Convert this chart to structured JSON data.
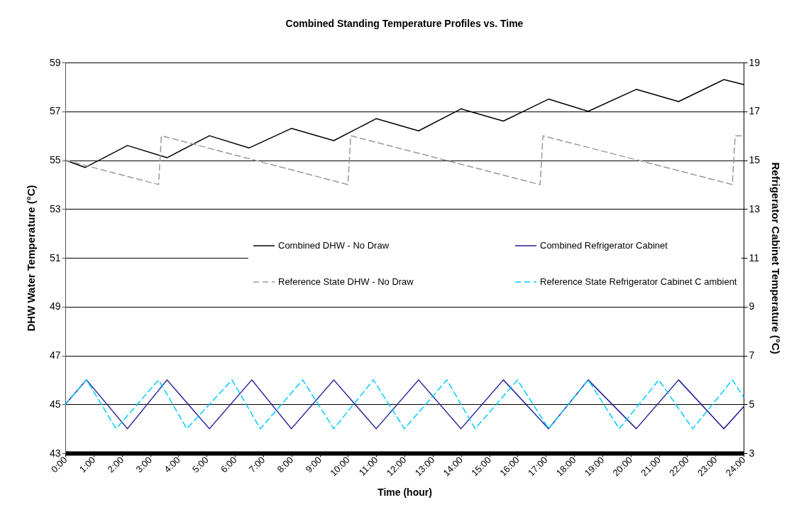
{
  "chart_data": {
    "type": "line",
    "title": "Combined Standing Temperature Profiles vs. Time",
    "xlabel": "Time (hour)",
    "ylabel": "DHW Water Temperature (°C)",
    "y2label": "Refrigerator Cabinet Temperature (°C)",
    "xlim": [
      0,
      24
    ],
    "xticks": [
      {
        "value": 0,
        "label": "0:00"
      },
      {
        "value": 1,
        "label": "1:00"
      },
      {
        "value": 2,
        "label": "2:00"
      },
      {
        "value": 3,
        "label": "3:00"
      },
      {
        "value": 4,
        "label": "4:00"
      },
      {
        "value": 5,
        "label": "5:00"
      },
      {
        "value": 6,
        "label": "6:00"
      },
      {
        "value": 7,
        "label": "7:00"
      },
      {
        "value": 8,
        "label": "8:00"
      },
      {
        "value": 9,
        "label": "9:00"
      },
      {
        "value": 10,
        "label": "10:00"
      },
      {
        "value": 11,
        "label": "11:00"
      },
      {
        "value": 12,
        "label": "12:00"
      },
      {
        "value": 13,
        "label": "13:00"
      },
      {
        "value": 14,
        "label": "14:00"
      },
      {
        "value": 15,
        "label": "15:00"
      },
      {
        "value": 16,
        "label": "16:00"
      },
      {
        "value": 17,
        "label": "17:00"
      },
      {
        "value": 18,
        "label": "18:00"
      },
      {
        "value": 19,
        "label": "19:00"
      },
      {
        "value": 20,
        "label": "20:00"
      },
      {
        "value": 21,
        "label": "21:00"
      },
      {
        "value": 22,
        "label": "22:00"
      },
      {
        "value": 23,
        "label": "23:00"
      },
      {
        "value": 24,
        "label": "24:00"
      }
    ],
    "ylim": [
      43,
      59
    ],
    "yticks": [
      43,
      45,
      47,
      49,
      51,
      53,
      55,
      57,
      59
    ],
    "y2lim": [
      3,
      19
    ],
    "y2ticks": [
      3,
      5,
      7,
      9,
      11,
      13,
      15,
      17,
      19
    ],
    "grid": "y",
    "legend": "center",
    "marker": "none",
    "series": [
      {
        "name": "Combined DHW - No Draw",
        "color": "#000000",
        "line_style": "solid",
        "x": [
          0,
          0.7,
          2.2,
          3.6,
          5.1,
          6.5,
          8.0,
          9.5,
          11.0,
          12.5,
          14.0,
          15.5,
          17.1,
          18.5,
          20.2,
          21.7,
          23.3,
          24
        ],
        "values": [
          55,
          54.7,
          55.6,
          55.1,
          56.0,
          55.5,
          56.3,
          55.8,
          56.7,
          56.2,
          57.1,
          56.6,
          57.5,
          57.0,
          57.9,
          57.4,
          58.3,
          58.1
        ]
      },
      {
        "name": "Reference State DHW - No Draw",
        "color": "#999999",
        "line_style": "dashed",
        "x": [
          0,
          3.3,
          3.4,
          10.0,
          10.1,
          16.8,
          16.9,
          23.6,
          23.7,
          24
        ],
        "values": [
          55,
          54,
          56,
          54,
          56,
          54,
          56,
          54,
          56,
          56
        ]
      },
      {
        "name": "Combined Refrigerator Cabinet",
        "color": "#1f1f99",
        "line_style": "solid",
        "axis": "y2",
        "x": [
          0,
          0.75,
          2.2,
          3.6,
          5.1,
          6.6,
          8.0,
          9.5,
          11.0,
          12.5,
          14.0,
          15.5,
          17.1,
          18.5,
          20.2,
          21.7,
          23.3,
          24
        ],
        "values": [
          5,
          6,
          4,
          6,
          4,
          6,
          4,
          6,
          4,
          6,
          4,
          6,
          4,
          6,
          4,
          6,
          4,
          4.9
        ]
      },
      {
        "name": "Reference State Refrigerator Cabinet C ambient",
        "color": "#00ccff",
        "line_style": "dashed",
        "axis": "y2",
        "x": [
          0,
          0.75,
          1.8,
          3.3,
          4.3,
          5.9,
          6.9,
          8.4,
          9.5,
          10.9,
          12.0,
          13.5,
          14.5,
          16.0,
          17.1,
          18.5,
          19.6,
          21.0,
          22.2,
          23.6,
          24
        ],
        "values": [
          5,
          6,
          4,
          6,
          4,
          6,
          4,
          6,
          4,
          6,
          4,
          6,
          4,
          6,
          4,
          6,
          4,
          6,
          4,
          6,
          5.3
        ]
      }
    ]
  }
}
